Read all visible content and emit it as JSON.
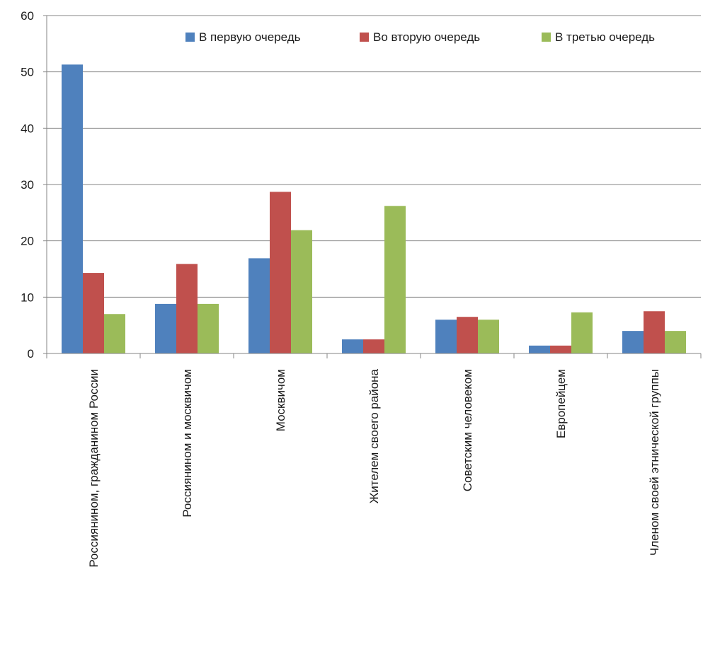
{
  "chart_data": {
    "type": "bar",
    "title": "",
    "xlabel": "",
    "ylabel": "",
    "ylim": [
      0,
      60
    ],
    "yticks": [
      0,
      10,
      20,
      30,
      40,
      50,
      60
    ],
    "grid": true,
    "legend_position": "top-right",
    "categories": [
      "Россиянином, гражданином России",
      "Россиянином и москвичом",
      "Москвичом",
      "Жителем своего района",
      "Советским человеком",
      "Европейцем",
      "Членом своей этнической группы"
    ],
    "series": [
      {
        "name": "В первую очередь",
        "color": "#4f81bd",
        "values": [
          51.3,
          8.8,
          16.9,
          2.5,
          6.0,
          1.4,
          4.0
        ]
      },
      {
        "name": "Во вторую очередь",
        "color": "#c0504d",
        "values": [
          14.3,
          15.9,
          28.7,
          2.5,
          6.5,
          1.4,
          7.5
        ]
      },
      {
        "name": "В третью очередь",
        "color": "#9bbb59",
        "values": [
          7.0,
          8.8,
          21.9,
          26.2,
          6.0,
          7.3,
          4.0
        ]
      }
    ]
  }
}
